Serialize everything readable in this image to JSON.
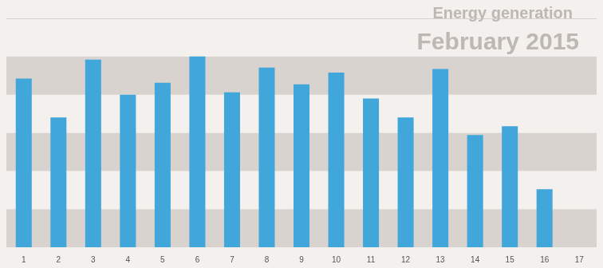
{
  "chart_data": {
    "type": "bar",
    "title": "Energy generation",
    "subtitle": "February 2015",
    "categories": [
      "1",
      "2",
      "3",
      "4",
      "5",
      "6",
      "7",
      "8",
      "9",
      "10",
      "11",
      "12",
      "13",
      "14",
      "15",
      "16",
      "17"
    ],
    "values": [
      4.42,
      3.4,
      4.92,
      4.0,
      4.31,
      5.0,
      4.06,
      4.71,
      4.27,
      4.58,
      3.9,
      3.4,
      4.67,
      2.94,
      3.17,
      1.52,
      null
    ],
    "color": "#41a6da",
    "ylim": [
      0,
      6
    ],
    "yticks": [
      0,
      1,
      2,
      3,
      4,
      5,
      6
    ],
    "grid": true,
    "tick_labels": "x"
  }
}
